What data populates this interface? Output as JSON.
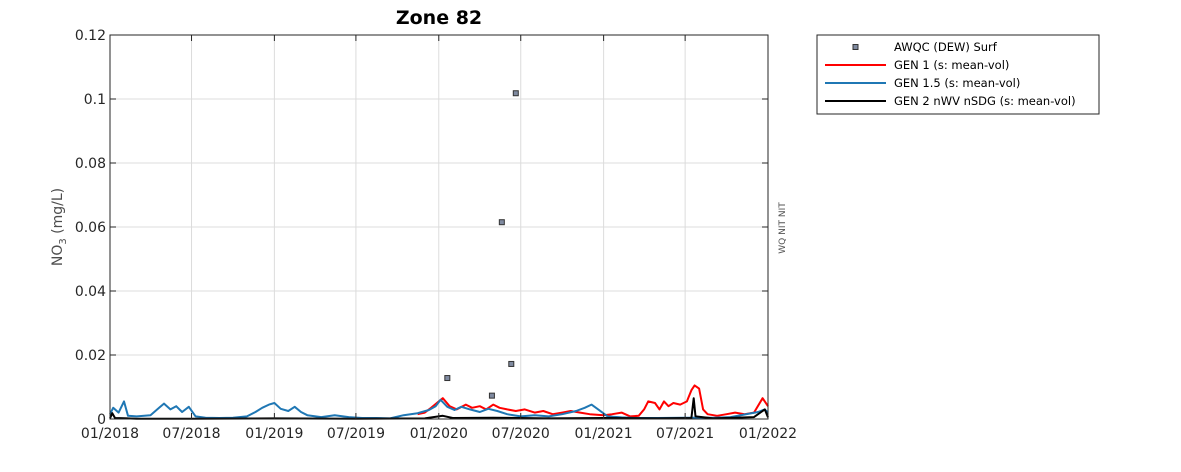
{
  "chart_data": {
    "type": "line",
    "title": "Zone 82",
    "ylabel_main": "NO",
    "ylabel_sub": "3",
    "ylabel_unit": " (mg/L)",
    "side_label": "WQ NIT NIT",
    "ylim": [
      0,
      0.12
    ],
    "yticks": [
      0,
      0.02,
      0.04,
      0.06,
      0.08,
      0.1,
      0.12
    ],
    "ytick_labels": [
      "0",
      "0.02",
      "0.04",
      "0.06",
      "0.08",
      "0.1",
      "0.12"
    ],
    "xlim": [
      "2018-01-01",
      "2022-01-01"
    ],
    "xticks": [
      "2018-01-01",
      "2018-07-01",
      "2019-01-01",
      "2019-07-01",
      "2020-01-01",
      "2020-07-01",
      "2021-01-01",
      "2021-07-01",
      "2022-01-01"
    ],
    "xtick_labels": [
      "01/2018",
      "07/2018",
      "01/2019",
      "07/2019",
      "01/2020",
      "07/2020",
      "01/2021",
      "07/2021",
      "01/2022"
    ],
    "grid": true,
    "legend_position": "outside-top-right",
    "series": [
      {
        "name": "AWQC (DEW) Surf",
        "kind": "scatter",
        "color": "#7f8aa0",
        "points": [
          [
            "2020-01-20",
            0.0128
          ],
          [
            "2020-04-28",
            0.0073
          ],
          [
            "2020-05-20",
            0.0615
          ],
          [
            "2020-06-10",
            0.0172
          ],
          [
            "2020-06-20",
            0.1018
          ]
        ]
      },
      {
        "name": "GEN 1 (s: mean-vol)",
        "kind": "line",
        "color": "#ff0000",
        "points": [
          [
            "2019-11-15",
            0.0015
          ],
          [
            "2019-12-01",
            0.002
          ],
          [
            "2019-12-15",
            0.0035
          ],
          [
            "2020-01-01",
            0.0055
          ],
          [
            "2020-01-10",
            0.0065
          ],
          [
            "2020-01-25",
            0.004
          ],
          [
            "2020-02-10",
            0.003
          ],
          [
            "2020-03-01",
            0.0045
          ],
          [
            "2020-03-15",
            0.0035
          ],
          [
            "2020-04-01",
            0.004
          ],
          [
            "2020-04-15",
            0.003
          ],
          [
            "2020-05-01",
            0.0045
          ],
          [
            "2020-05-15",
            0.0035
          ],
          [
            "2020-06-01",
            0.003
          ],
          [
            "2020-06-20",
            0.0025
          ],
          [
            "2020-07-10",
            0.003
          ],
          [
            "2020-08-01",
            0.002
          ],
          [
            "2020-08-20",
            0.0025
          ],
          [
            "2020-09-10",
            0.0015
          ],
          [
            "2020-10-01",
            0.002
          ],
          [
            "2020-10-20",
            0.0025
          ],
          [
            "2020-11-10",
            0.002
          ],
          [
            "2020-12-01",
            0.0015
          ],
          [
            "2021-01-01",
            0.0012
          ],
          [
            "2021-01-20",
            0.0015
          ],
          [
            "2021-02-10",
            0.002
          ],
          [
            "2021-03-01",
            0.0008
          ],
          [
            "2021-03-20",
            0.001
          ],
          [
            "2021-04-01",
            0.003
          ],
          [
            "2021-04-10",
            0.0055
          ],
          [
            "2021-04-25",
            0.005
          ],
          [
            "2021-05-05",
            0.003
          ],
          [
            "2021-05-15",
            0.0055
          ],
          [
            "2021-05-25",
            0.004
          ],
          [
            "2021-06-05",
            0.005
          ],
          [
            "2021-06-20",
            0.0045
          ],
          [
            "2021-07-05",
            0.0055
          ],
          [
            "2021-07-15",
            0.009
          ],
          [
            "2021-07-22",
            0.0105
          ],
          [
            "2021-08-01",
            0.0095
          ],
          [
            "2021-08-10",
            0.003
          ],
          [
            "2021-08-20",
            0.0015
          ],
          [
            "2021-09-10",
            0.001
          ],
          [
            "2021-10-01",
            0.0015
          ],
          [
            "2021-10-20",
            0.002
          ],
          [
            "2021-11-10",
            0.0015
          ],
          [
            "2021-12-01",
            0.002
          ],
          [
            "2021-12-20",
            0.0065
          ],
          [
            "2022-01-01",
            0.004
          ]
        ]
      },
      {
        "name": "GEN 1.5 (s: mean-vol)",
        "kind": "line",
        "color": "#1f77b4",
        "points": [
          [
            "2018-01-01",
            0.0015
          ],
          [
            "2018-01-08",
            0.0035
          ],
          [
            "2018-01-20",
            0.002
          ],
          [
            "2018-02-01",
            0.0055
          ],
          [
            "2018-02-10",
            0.001
          ],
          [
            "2018-03-01",
            0.0008
          ],
          [
            "2018-04-01",
            0.0012
          ],
          [
            "2018-04-20",
            0.0035
          ],
          [
            "2018-05-01",
            0.0048
          ],
          [
            "2018-05-15",
            0.003
          ],
          [
            "2018-05-28",
            0.004
          ],
          [
            "2018-06-10",
            0.0022
          ],
          [
            "2018-06-25",
            0.0038
          ],
          [
            "2018-07-10",
            0.0008
          ],
          [
            "2018-08-01",
            0.0004
          ],
          [
            "2018-09-01",
            0.0003
          ],
          [
            "2018-10-01",
            0.0004
          ],
          [
            "2018-11-01",
            0.0008
          ],
          [
            "2018-11-20",
            0.0022
          ],
          [
            "2018-12-05",
            0.0035
          ],
          [
            "2018-12-20",
            0.0045
          ],
          [
            "2019-01-01",
            0.005
          ],
          [
            "2019-01-15",
            0.0032
          ],
          [
            "2019-02-01",
            0.0025
          ],
          [
            "2019-02-15",
            0.0038
          ],
          [
            "2019-03-01",
            0.0022
          ],
          [
            "2019-03-15",
            0.0012
          ],
          [
            "2019-04-15",
            0.0006
          ],
          [
            "2019-05-15",
            0.0012
          ],
          [
            "2019-06-15",
            0.0006
          ],
          [
            "2019-07-15",
            0.0003
          ],
          [
            "2019-08-15",
            0.0003
          ],
          [
            "2019-09-15",
            0.0002
          ],
          [
            "2019-10-15",
            0.0012
          ],
          [
            "2019-11-15",
            0.0018
          ],
          [
            "2019-12-10",
            0.0028
          ],
          [
            "2019-12-25",
            0.004
          ],
          [
            "2020-01-05",
            0.006
          ],
          [
            "2020-01-20",
            0.0038
          ],
          [
            "2020-02-05",
            0.0028
          ],
          [
            "2020-02-20",
            0.0038
          ],
          [
            "2020-03-10",
            0.003
          ],
          [
            "2020-04-01",
            0.0022
          ],
          [
            "2020-04-20",
            0.0032
          ],
          [
            "2020-05-10",
            0.0025
          ],
          [
            "2020-06-01",
            0.0015
          ],
          [
            "2020-07-01",
            0.0008
          ],
          [
            "2020-08-01",
            0.0012
          ],
          [
            "2020-09-01",
            0.0008
          ],
          [
            "2020-10-01",
            0.0015
          ],
          [
            "2020-11-01",
            0.0025
          ],
          [
            "2020-11-20",
            0.0035
          ],
          [
            "2020-12-05",
            0.0045
          ],
          [
            "2020-12-20",
            0.003
          ],
          [
            "2021-01-10",
            0.0008
          ],
          [
            "2021-02-10",
            0.0005
          ],
          [
            "2021-03-10",
            0.0003
          ],
          [
            "2021-05-01",
            0.0003
          ],
          [
            "2021-07-01",
            0.0004
          ],
          [
            "2021-09-01",
            0.0004
          ],
          [
            "2021-10-10",
            0.0006
          ],
          [
            "2021-11-10",
            0.0014
          ],
          [
            "2021-12-10",
            0.0022
          ],
          [
            "2021-12-25",
            0.003
          ],
          [
            "2022-01-01",
            0.002
          ]
        ]
      },
      {
        "name": "GEN 2 nWV nSDG (s: mean-vol)",
        "kind": "line",
        "color": "#000000",
        "points": [
          [
            "2018-01-01",
            0.0002
          ],
          [
            "2018-01-06",
            0.0018
          ],
          [
            "2018-01-12",
            0.0003
          ],
          [
            "2018-03-01",
            0.0001
          ],
          [
            "2018-07-01",
            0.0001
          ],
          [
            "2019-01-01",
            0.0002
          ],
          [
            "2019-07-01",
            0.0001
          ],
          [
            "2019-12-01",
            0.0002
          ],
          [
            "2020-01-10",
            0.001
          ],
          [
            "2020-02-01",
            0.0003
          ],
          [
            "2020-05-01",
            0.0004
          ],
          [
            "2020-09-01",
            0.0002
          ],
          [
            "2021-01-01",
            0.0003
          ],
          [
            "2021-05-01",
            0.0002
          ],
          [
            "2021-07-15",
            0.0003
          ],
          [
            "2021-07-20",
            0.0065
          ],
          [
            "2021-07-24",
            0.0008
          ],
          [
            "2021-09-01",
            0.0002
          ],
          [
            "2021-12-01",
            0.0006
          ],
          [
            "2021-12-25",
            0.003
          ],
          [
            "2022-01-01",
            0.0005
          ]
        ]
      }
    ]
  }
}
